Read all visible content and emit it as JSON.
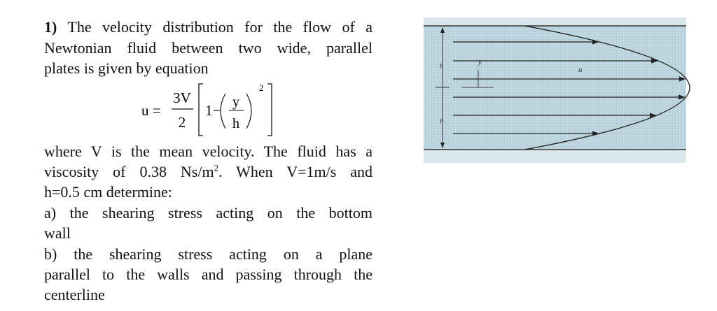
{
  "problem": {
    "number": "1)",
    "intro_lines": [
      "The velocity distribution for the flow of a",
      "Newtonian fluid between two wide, parallel",
      "plates is given by equation"
    ],
    "equation": {
      "lhs": "u =",
      "numerator": "3V",
      "denominator": "2",
      "one_minus": "1−",
      "ratio_numerator": "y",
      "ratio_denominator": "h",
      "exponent": "2"
    },
    "where_line": "where V is the mean velocity. The fluid has a",
    "viscosity_line": {
      "before": "viscosity of 0.38 Ns/m",
      "sup": "2",
      "after": ". When V=1m/s and"
    },
    "determine_line": "h=0.5 cm determine:",
    "part_a_lines": [
      "a) the shearing stress acting on the bottom",
      "wall"
    ],
    "part_b_lines": [
      "b) the shearing stress acting on a plane",
      "parallel to the walls and passing through the",
      "centerline"
    ]
  },
  "figure": {
    "labels": [
      "h",
      "y",
      "u",
      "h"
    ]
  }
}
